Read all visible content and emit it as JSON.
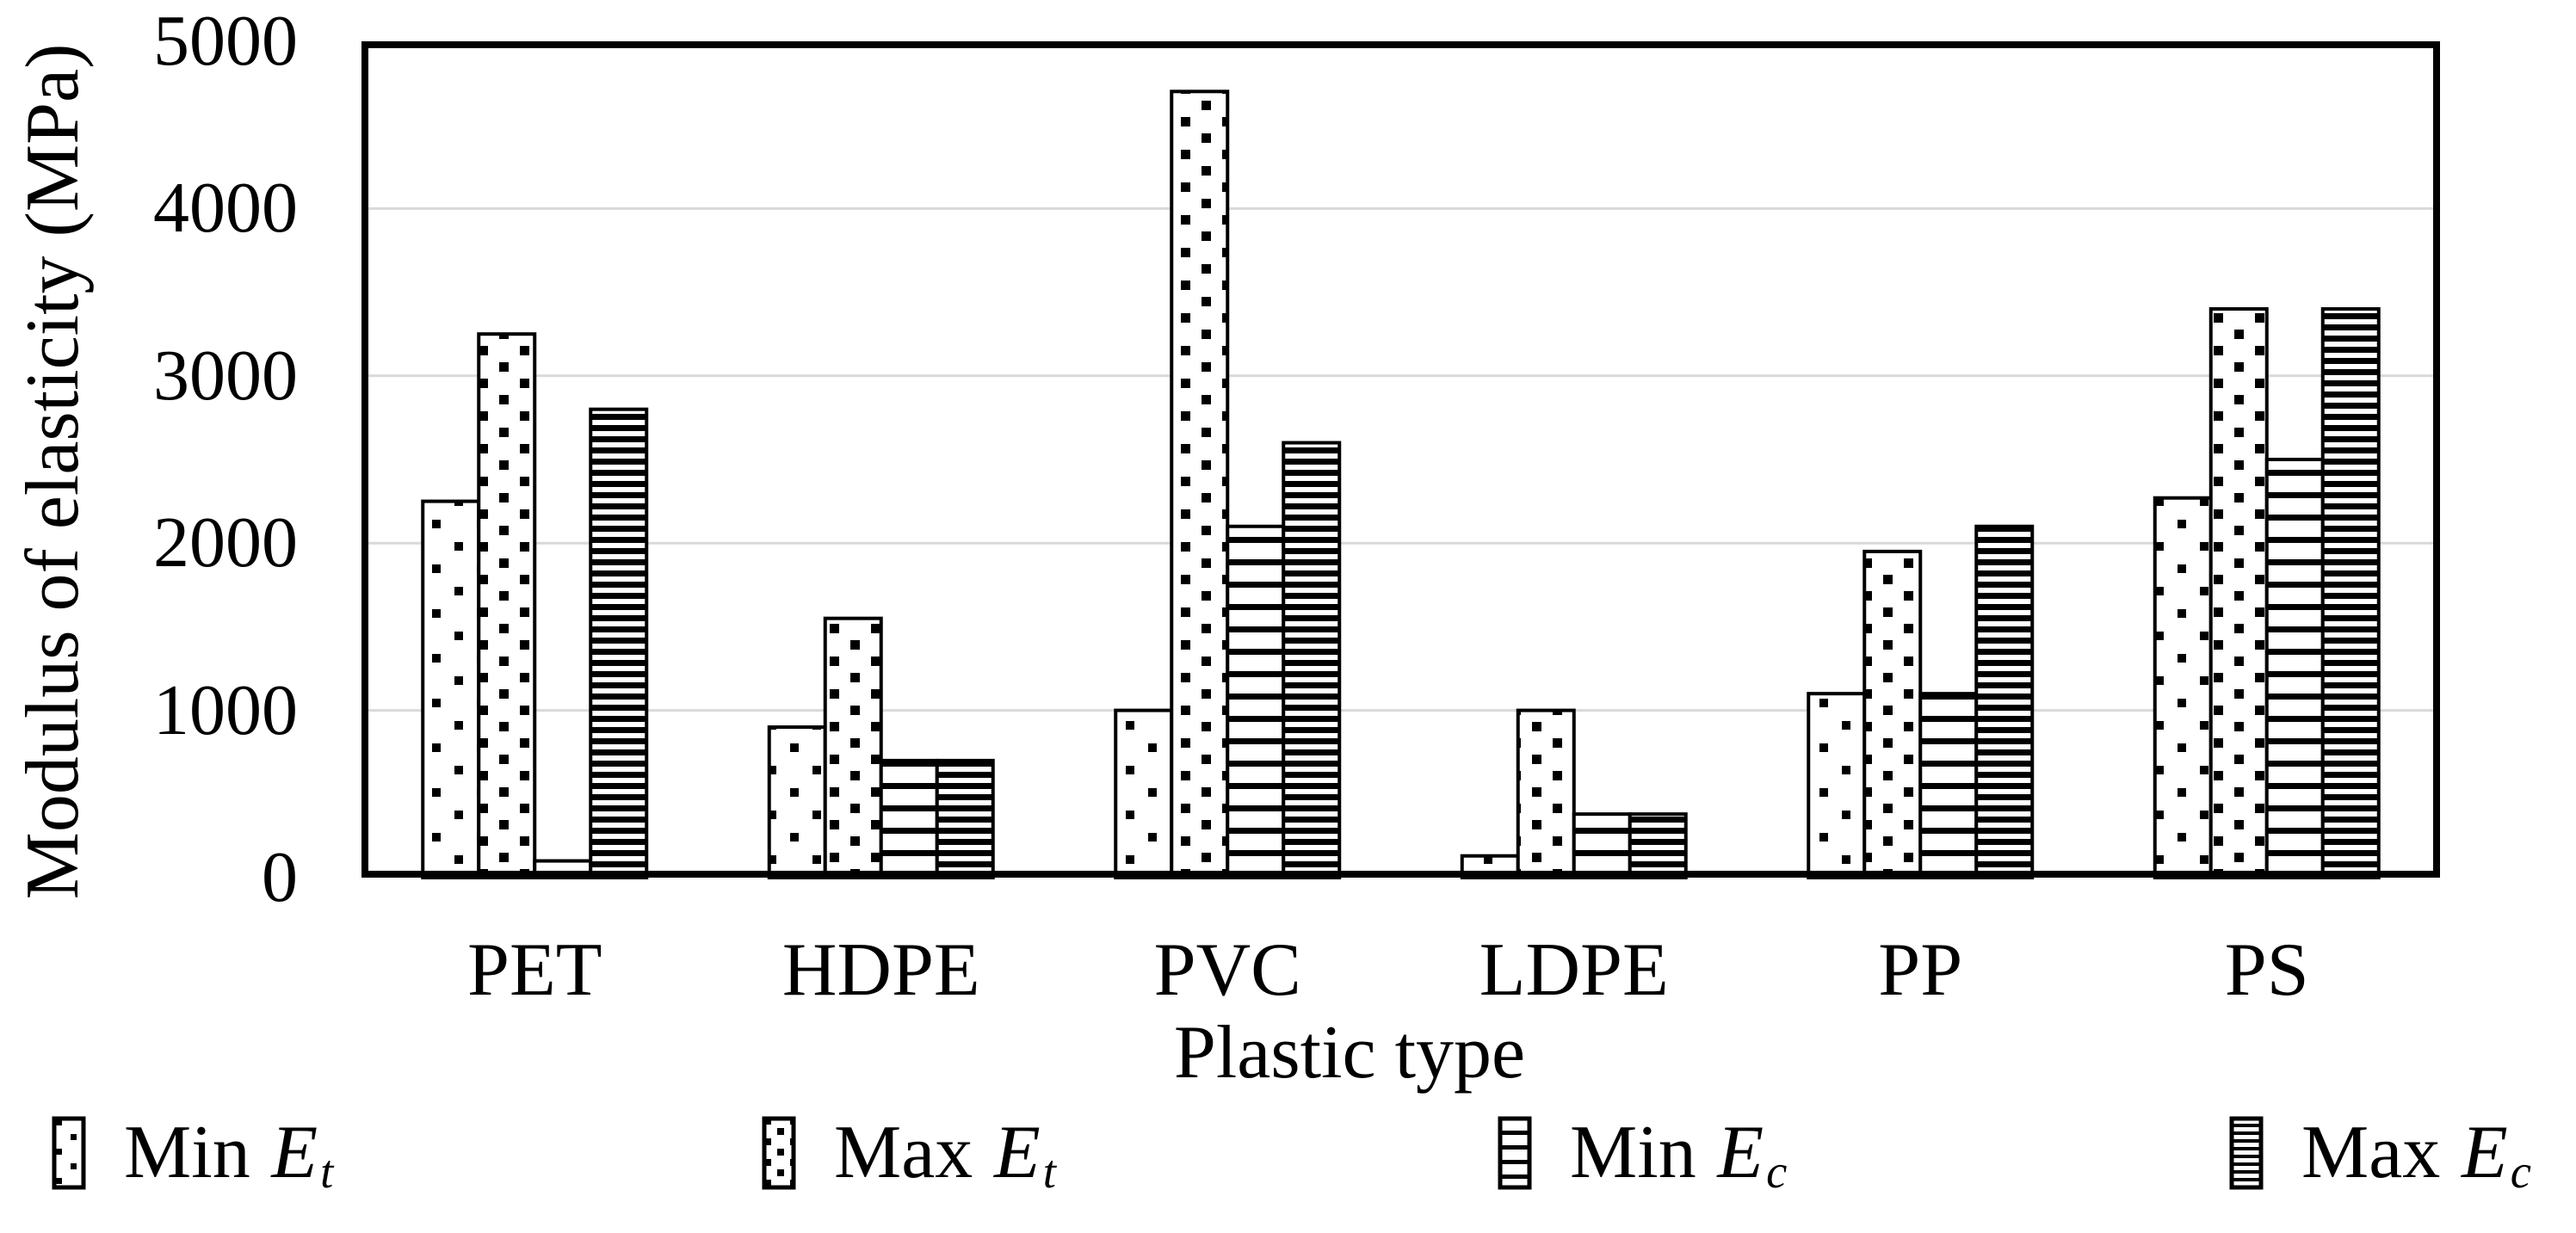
{
  "figure": {
    "background": "#ffffff",
    "text_color": "#000000",
    "gridline_color": "#d9d9d9",
    "bar_outline_color": "#000000"
  },
  "chart_data": {
    "type": "bar",
    "title": "",
    "xlabel": "Plastic type",
    "ylabel": "Modulus of elasticity (MPa)",
    "categories": [
      "PET",
      "HDPE",
      "PVC",
      "LDPE",
      "PP",
      "PS"
    ],
    "series": [
      {
        "name": "Min Et",
        "pattern": "dots-sparse",
        "values": [
          2250,
          900,
          1000,
          130,
          1100,
          2270
        ]
      },
      {
        "name": "Max Et",
        "pattern": "dots-dense",
        "values": [
          3250,
          1550,
          4700,
          1000,
          1950,
          3400
        ]
      },
      {
        "name": "Min Ec",
        "pattern": "hlines-sparse",
        "values": [
          100,
          700,
          2100,
          380,
          1100,
          2500
        ]
      },
      {
        "name": "Max Ec",
        "pattern": "hlines-dense",
        "values": [
          2800,
          700,
          2600,
          380,
          2100,
          3400
        ]
      }
    ],
    "ylim": [
      0,
      5000
    ],
    "yticks": [
      "0",
      "1000",
      "2000",
      "3000",
      "4000",
      "5000"
    ],
    "grid": "horizontal gridlines at each 1000, plot area boxed",
    "legend_position": "bottom"
  },
  "legend": {
    "items": [
      {
        "prefix": "Min",
        "symbol": "E",
        "sub": "t",
        "swatch": "dots-sparse-swatch",
        "swatch_fill": "url(#lg-dots-sparse)"
      },
      {
        "prefix": "Max",
        "symbol": "E",
        "sub": "t",
        "swatch": "dots-dense-swatch",
        "swatch_fill": "url(#lg-dots-dense)"
      },
      {
        "prefix": "Min",
        "symbol": "E",
        "sub": "c",
        "swatch": "hlines-sparse-swatch",
        "swatch_fill": "url(#lg-hlines-sparse)"
      },
      {
        "prefix": "Max",
        "symbol": "E",
        "sub": "c",
        "swatch": "hlines-dense-swatch",
        "swatch_fill": "url(#lg-hlines-dense)"
      }
    ]
  }
}
